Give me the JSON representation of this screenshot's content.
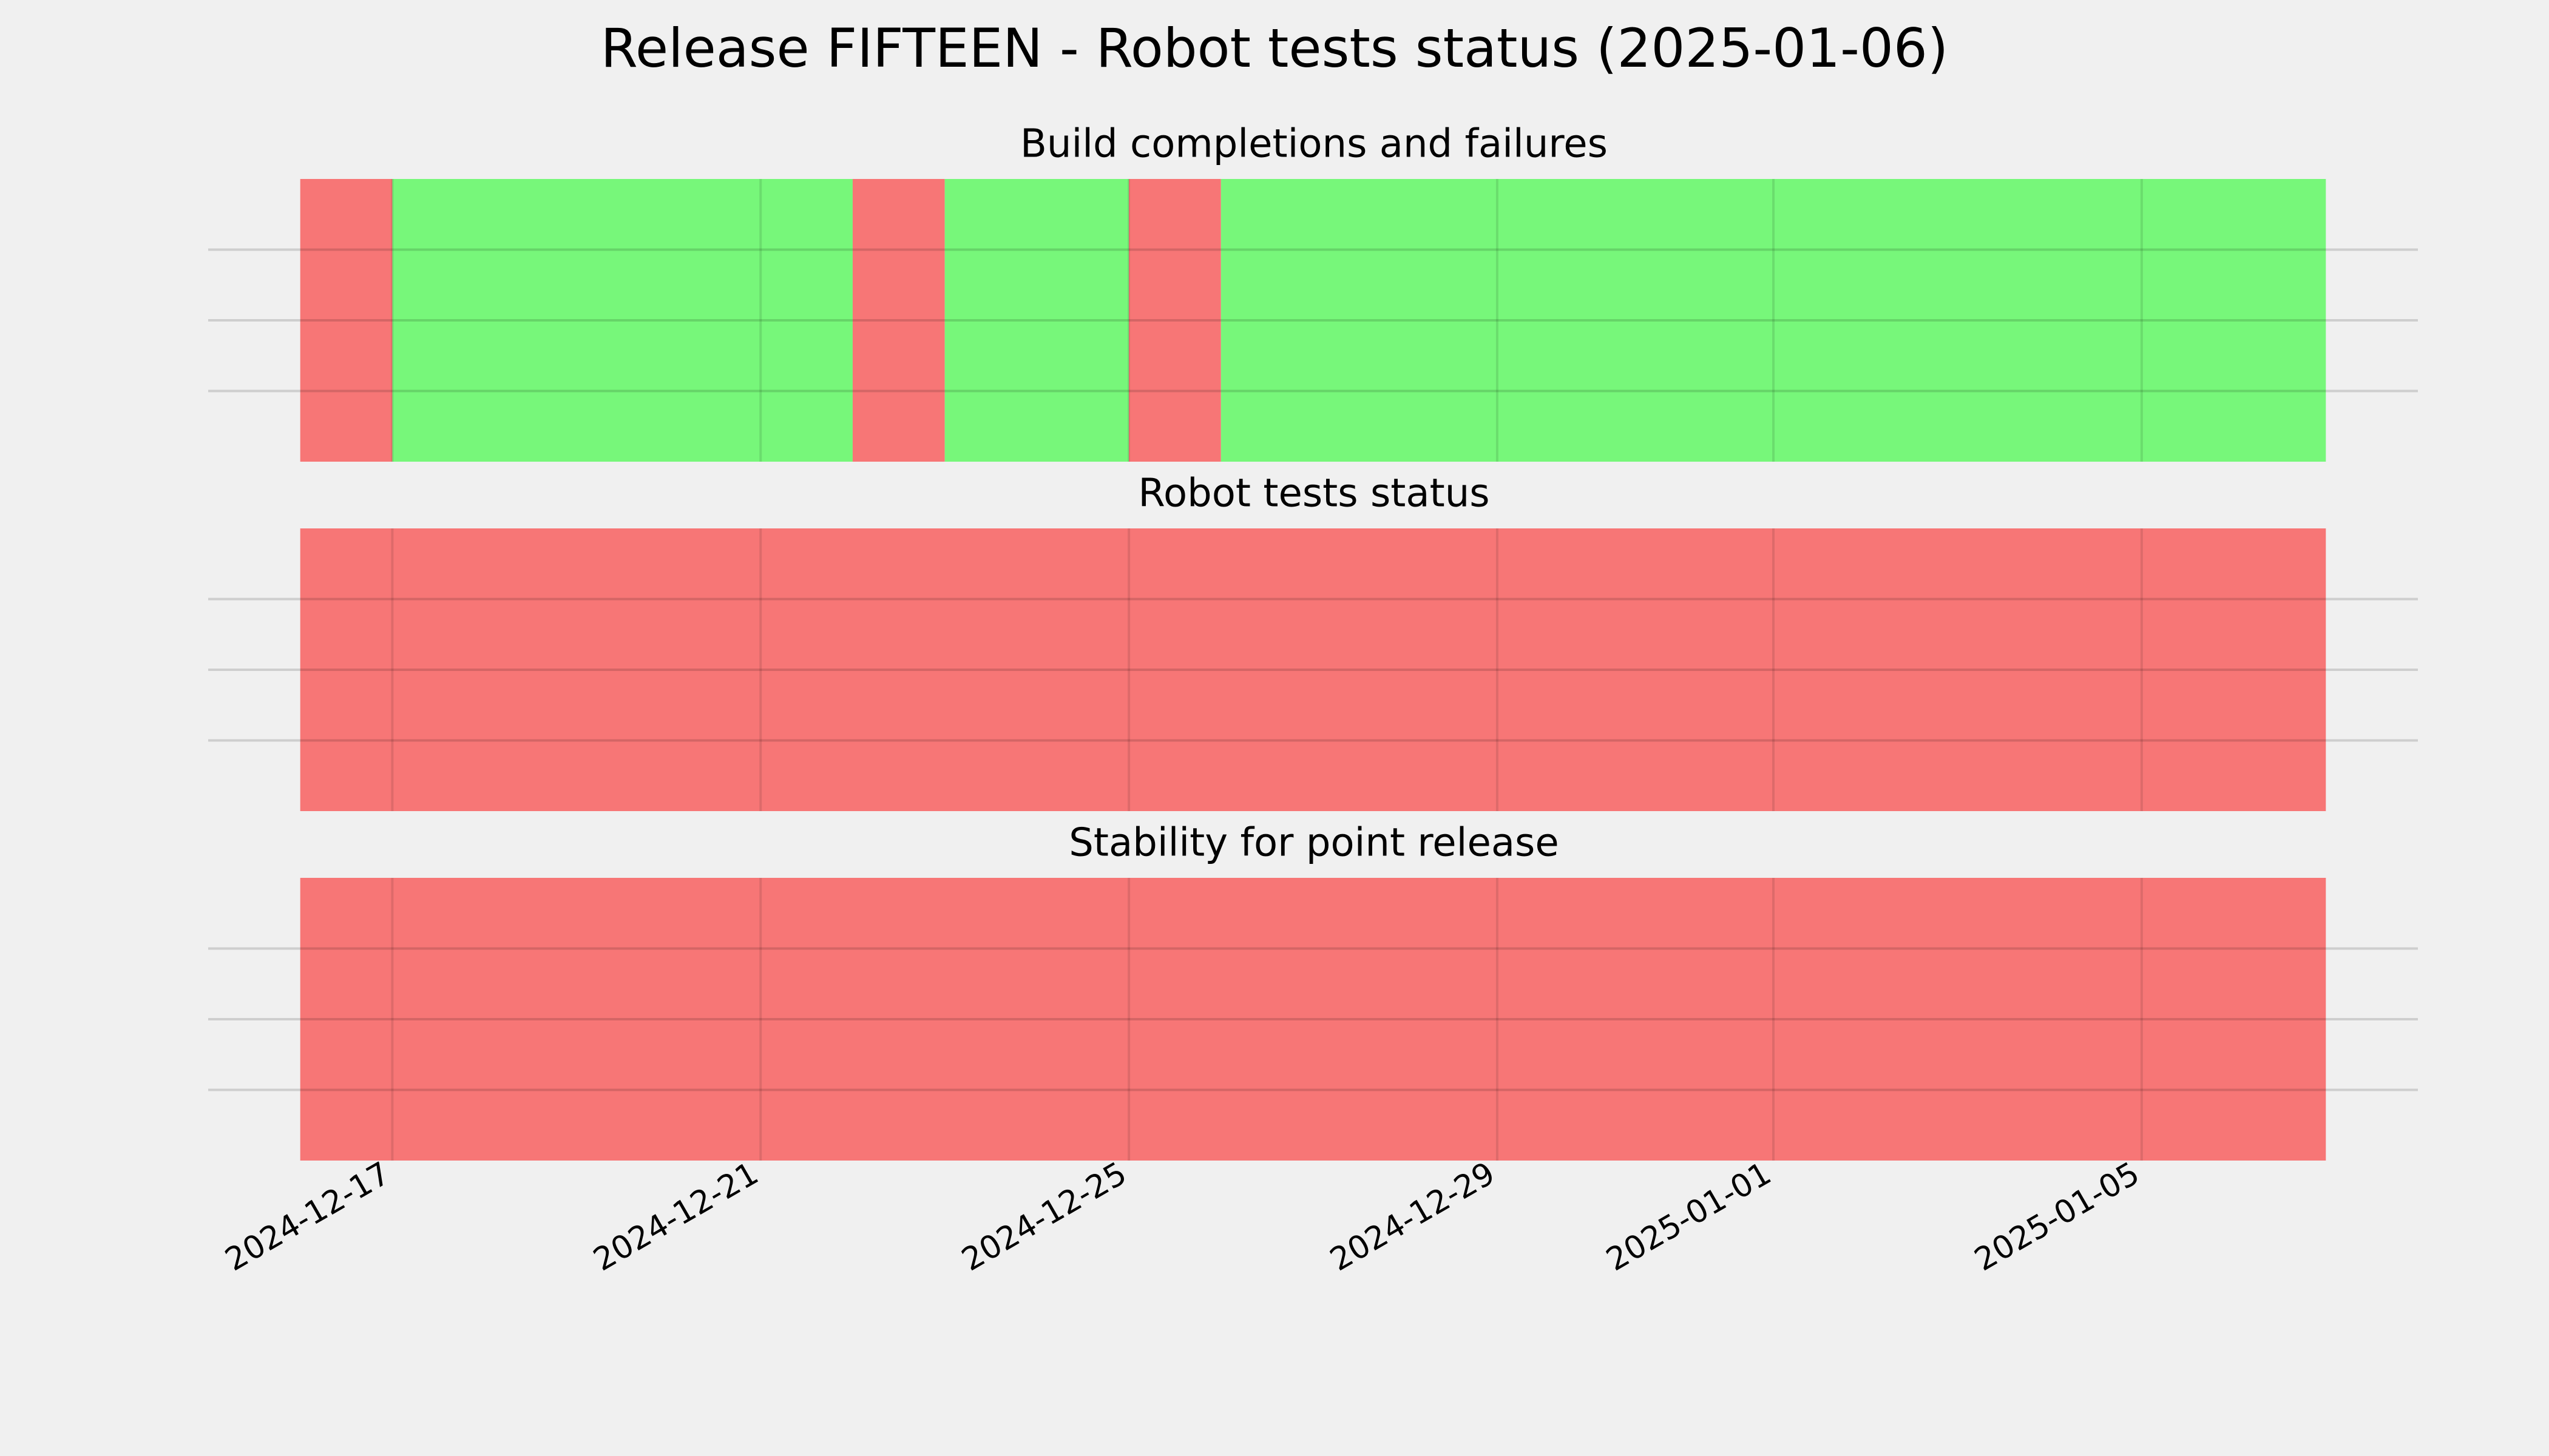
{
  "chart_data": {
    "type": "timeline",
    "title": "Release FIFTEEN - Robot tests status (2025-01-06)",
    "xlim": [
      "2024-12-15",
      "2025-01-08"
    ],
    "xticks": [
      "2024-12-17",
      "2024-12-21",
      "2024-12-25",
      "2024-12-29",
      "2025-01-01",
      "2025-01-05"
    ],
    "grid": true,
    "panels": [
      {
        "title": "Build completions and failures",
        "segments": [
          {
            "start": "2024-12-16",
            "end": "2024-12-17",
            "color": "#f77676"
          },
          {
            "start": "2024-12-17",
            "end": "2024-12-22",
            "color": "#77f77a"
          },
          {
            "start": "2024-12-22",
            "end": "2024-12-23",
            "color": "#f77676"
          },
          {
            "start": "2024-12-23",
            "end": "2024-12-25",
            "color": "#77f77a"
          },
          {
            "start": "2024-12-25",
            "end": "2024-12-26",
            "color": "#f77676"
          },
          {
            "start": "2024-12-26",
            "end": "2025-01-07",
            "color": "#77f77a"
          }
        ]
      },
      {
        "title": "Robot tests status",
        "segments": [
          {
            "start": "2024-12-16",
            "end": "2025-01-07",
            "color": "#f77676"
          }
        ]
      },
      {
        "title": "Stability for point release",
        "segments": [
          {
            "start": "2024-12-16",
            "end": "2025-01-07",
            "color": "#f77676"
          }
        ]
      }
    ]
  }
}
